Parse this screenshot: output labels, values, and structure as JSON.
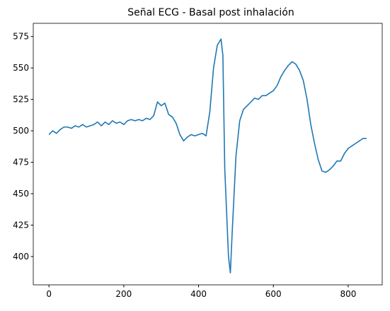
{
  "chart_data": {
    "type": "line",
    "title": "Señal ECG - Basal post inhalación",
    "x": [
      0,
      10,
      20,
      30,
      40,
      50,
      60,
      70,
      80,
      90,
      100,
      110,
      120,
      130,
      140,
      150,
      160,
      170,
      180,
      190,
      200,
      210,
      220,
      230,
      240,
      250,
      260,
      270,
      280,
      290,
      300,
      310,
      320,
      330,
      340,
      350,
      360,
      370,
      380,
      390,
      400,
      410,
      420,
      430,
      440,
      450,
      460,
      465,
      470,
      480,
      485,
      490,
      500,
      510,
      520,
      530,
      540,
      550,
      560,
      570,
      580,
      590,
      600,
      610,
      620,
      630,
      640,
      650,
      660,
      670,
      680,
      690,
      700,
      710,
      720,
      730,
      740,
      750,
      760,
      770,
      780,
      790,
      800,
      810,
      820,
      830,
      840,
      849
    ],
    "series": [
      {
        "name": "ECG",
        "color": "#1f77b4",
        "values": [
          497,
          500,
          498,
          501,
          503,
          503,
          502,
          504,
          503,
          505,
          503,
          504,
          505,
          507,
          504,
          507,
          505,
          508,
          506,
          507,
          505,
          508,
          509,
          508,
          509,
          508,
          510,
          509,
          512,
          523,
          520,
          522,
          513,
          511,
          506,
          497,
          492,
          495,
          497,
          496,
          497,
          498,
          496,
          515,
          550,
          568,
          573,
          560,
          470,
          400,
          387,
          420,
          480,
          508,
          517,
          520,
          523,
          526,
          525,
          528,
          528,
          530,
          532,
          536,
          543,
          548,
          552,
          555,
          553,
          548,
          540,
          525,
          505,
          490,
          477,
          468,
          467,
          469,
          472,
          476,
          476,
          482,
          486,
          488,
          490,
          492,
          494,
          494
        ]
      }
    ],
    "xlim": [
      -42,
      891
    ],
    "ylim": [
      377.5,
      585.5
    ],
    "xticks": [
      0,
      200,
      400,
      600,
      800
    ],
    "yticks": [
      400,
      425,
      450,
      475,
      500,
      525,
      550,
      575
    ]
  }
}
